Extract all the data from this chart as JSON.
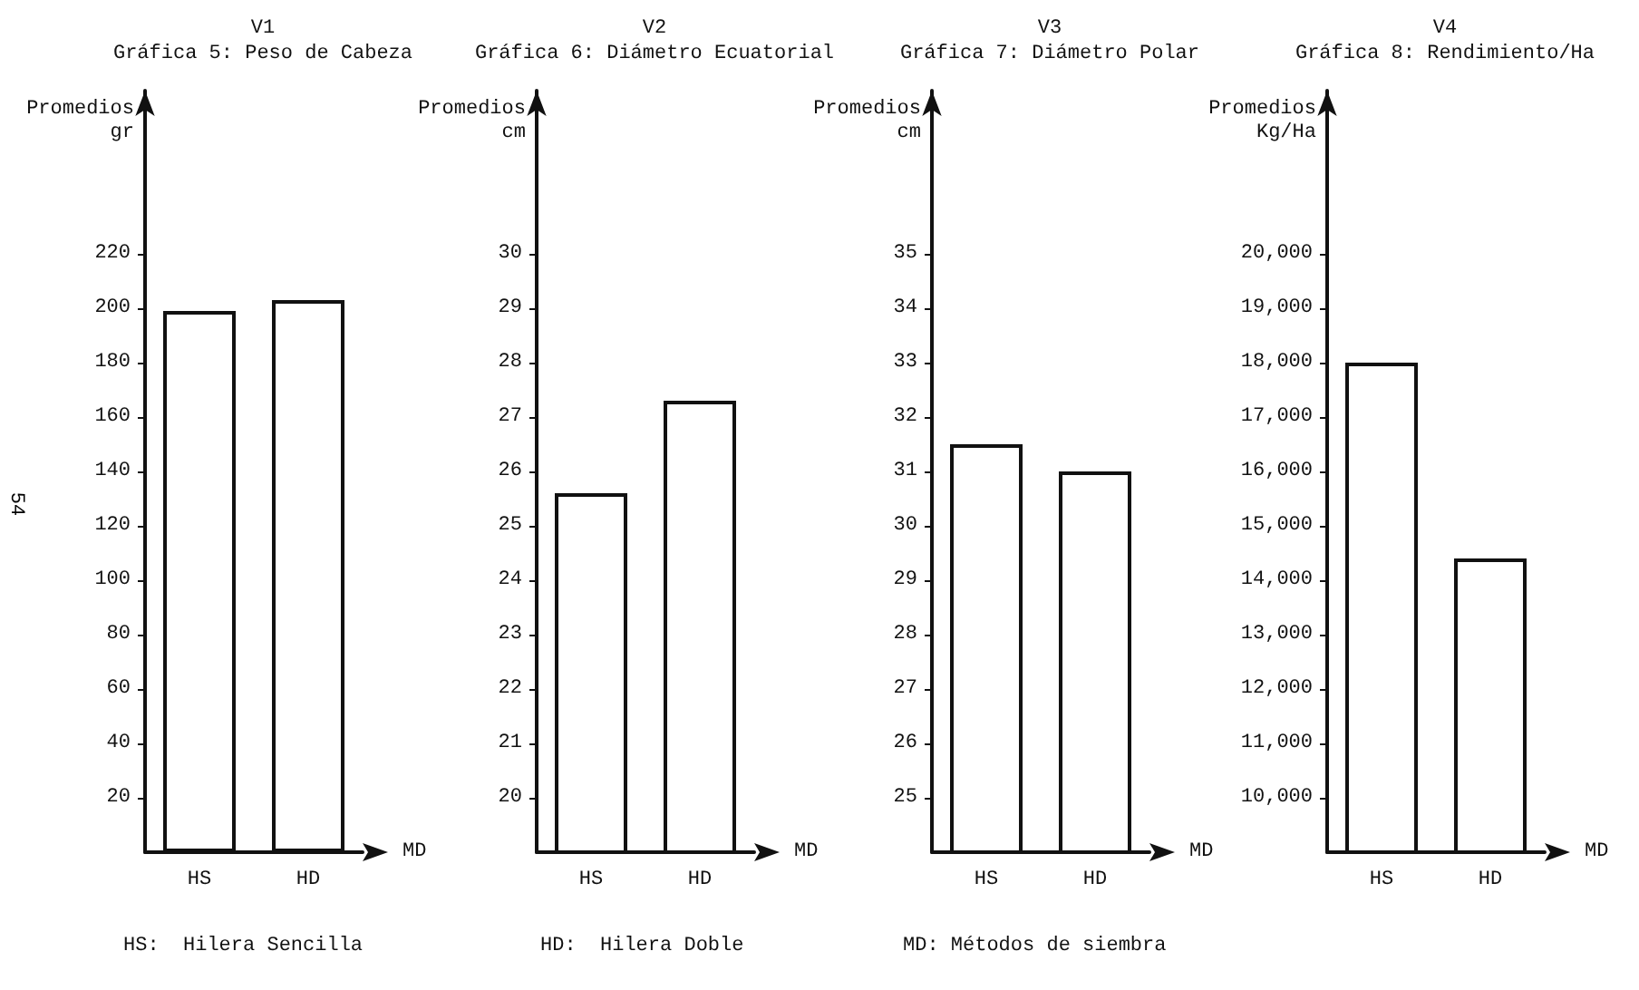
{
  "chart_data": [
    {
      "type": "bar",
      "title": "V1\nGráfica 5: Peso de Cabeza",
      "ylabel": "Promedios\ngr",
      "xlabel": "MD",
      "categories": [
        "HS",
        "HD"
      ],
      "values": [
        199,
        203
      ],
      "color": "#ffffff",
      "ylim": [
        0,
        280
      ],
      "yticks": [
        20,
        40,
        60,
        80,
        100,
        120,
        140,
        160,
        180,
        200,
        220
      ],
      "grid": false,
      "annotations": [
        "HS:  Hilera Sencilla",
        "HD:  Hilera Doble",
        "MD: Métodos de siembra",
        "54"
      ]
    },
    {
      "type": "bar",
      "title": "V2\nGráfica 6: Diámetro Ecuatorial",
      "ylabel": "Promedios\ncm",
      "xlabel": "MD",
      "categories": [
        "HS",
        "HD"
      ],
      "values": [
        25.6,
        27.3
      ],
      "color": "#ffffff",
      "ylim": [
        19,
        33
      ],
      "yticks": [
        20,
        21,
        22,
        23,
        24,
        25,
        26,
        27,
        28,
        29,
        30
      ],
      "grid": false
    },
    {
      "type": "bar",
      "title": "V3\nGráfica 7: Diámetro Polar",
      "ylabel": "Promedios\ncm",
      "xlabel": "MD",
      "categories": [
        "HS",
        "HD"
      ],
      "values": [
        31.5,
        31.0
      ],
      "color": "#ffffff",
      "ylim": [
        24,
        38
      ],
      "yticks": [
        25,
        26,
        27,
        28,
        29,
        30,
        31,
        32,
        33,
        34,
        35
      ],
      "grid": false
    },
    {
      "type": "bar",
      "title": "V4\nGráfica 8: Rendimiento/Ha",
      "ylabel": "Promedios\nKg/Ha",
      "xlabel": "MD",
      "categories": [
        "HS",
        "HD"
      ],
      "values": [
        18000,
        14400
      ],
      "color": "#ffffff",
      "ylim": [
        9000,
        23000
      ],
      "yticks": [
        {
          "value": 10000,
          "label": "10,000"
        },
        {
          "value": 11000,
          "label": "11,000"
        },
        {
          "value": 12000,
          "label": "12,000"
        },
        {
          "value": 13000,
          "label": "13,000"
        },
        {
          "value": 14000,
          "label": "14,000"
        },
        {
          "value": 15000,
          "label": "15,000"
        },
        {
          "value": 16000,
          "label": "16,000"
        },
        {
          "value": 17000,
          "label": "17,000"
        },
        {
          "value": 18000,
          "label": "18,000"
        },
        {
          "value": 19000,
          "label": "19,000"
        },
        {
          "value": 20000,
          "label": "20,000"
        }
      ],
      "grid": false
    }
  ]
}
